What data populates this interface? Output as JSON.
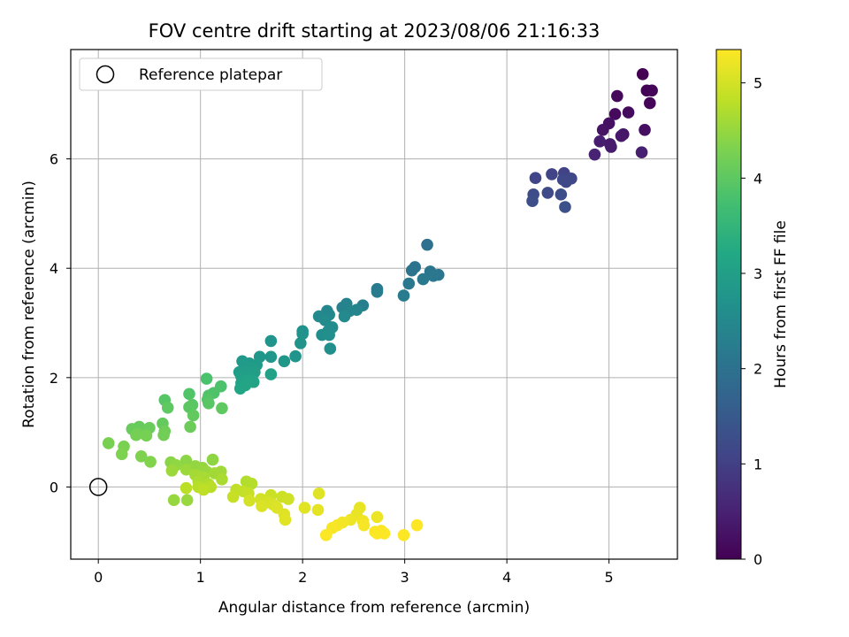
{
  "chart_data": {
    "type": "scatter",
    "title": "FOV centre drift starting at 2023/08/06 21:16:33",
    "xlabel": "Angular distance from reference (arcmin)",
    "ylabel": "Rotation from reference (arcmin)",
    "xlim": [
      -0.27,
      5.67
    ],
    "ylim": [
      -1.32,
      8.0
    ],
    "x_ticks": [
      0,
      1,
      2,
      3,
      4,
      5
    ],
    "y_ticks": [
      0,
      2,
      4,
      6
    ],
    "grid": true,
    "legend": {
      "placement": "upper-left",
      "entries": [
        "Reference platepar"
      ]
    },
    "reference_point": {
      "x": 0,
      "y": 0
    },
    "colorbar": {
      "label": "Hours from first FF file",
      "range": [
        0,
        5.35
      ],
      "ticks": [
        0,
        1,
        2,
        3,
        4,
        5
      ],
      "colormap": "viridis"
    },
    "points": [
      {
        "x": 5.33,
        "y": 7.55,
        "t": 0.0
      },
      {
        "x": 5.37,
        "y": 7.25,
        "t": 0.04
      },
      {
        "x": 5.42,
        "y": 7.25,
        "t": 0.06
      },
      {
        "x": 5.4,
        "y": 7.02,
        "t": 0.08
      },
      {
        "x": 5.08,
        "y": 7.15,
        "t": 0.1
      },
      {
        "x": 5.06,
        "y": 6.82,
        "t": 0.14
      },
      {
        "x": 5.19,
        "y": 6.85,
        "t": 0.17
      },
      {
        "x": 5.35,
        "y": 6.53,
        "t": 0.2
      },
      {
        "x": 5.0,
        "y": 6.65,
        "t": 0.24
      },
      {
        "x": 4.94,
        "y": 6.53,
        "t": 0.28
      },
      {
        "x": 5.14,
        "y": 6.45,
        "t": 0.31
      },
      {
        "x": 5.12,
        "y": 6.42,
        "t": 0.34
      },
      {
        "x": 5.01,
        "y": 6.27,
        "t": 0.38
      },
      {
        "x": 5.02,
        "y": 6.22,
        "t": 0.41
      },
      {
        "x": 4.91,
        "y": 6.32,
        "t": 0.44
      },
      {
        "x": 5.32,
        "y": 6.12,
        "t": 0.46
      },
      {
        "x": 4.86,
        "y": 6.08,
        "t": 0.5
      },
      {
        "x": 4.56,
        "y": 5.74,
        "t": 1.05
      },
      {
        "x": 4.44,
        "y": 5.72,
        "t": 1.08
      },
      {
        "x": 4.28,
        "y": 5.65,
        "t": 1.1
      },
      {
        "x": 4.63,
        "y": 5.64,
        "t": 1.12
      },
      {
        "x": 4.55,
        "y": 5.62,
        "t": 1.15
      },
      {
        "x": 4.58,
        "y": 5.58,
        "t": 1.17
      },
      {
        "x": 4.4,
        "y": 5.38,
        "t": 1.2
      },
      {
        "x": 4.26,
        "y": 5.35,
        "t": 1.22
      },
      {
        "x": 4.53,
        "y": 5.35,
        "t": 1.25
      },
      {
        "x": 4.25,
        "y": 5.23,
        "t": 1.27
      },
      {
        "x": 4.57,
        "y": 5.12,
        "t": 1.3
      },
      {
        "x": 3.22,
        "y": 4.43,
        "t": 2.0
      },
      {
        "x": 3.1,
        "y": 4.02,
        "t": 2.03
      },
      {
        "x": 3.07,
        "y": 3.96,
        "t": 2.05
      },
      {
        "x": 3.25,
        "y": 3.94,
        "t": 2.07
      },
      {
        "x": 3.33,
        "y": 3.88,
        "t": 2.09
      },
      {
        "x": 3.28,
        "y": 3.86,
        "t": 2.11
      },
      {
        "x": 3.18,
        "y": 3.8,
        "t": 2.13
      },
      {
        "x": 3.04,
        "y": 3.72,
        "t": 2.15
      },
      {
        "x": 2.73,
        "y": 3.62,
        "t": 2.18
      },
      {
        "x": 2.73,
        "y": 3.57,
        "t": 2.2
      },
      {
        "x": 2.99,
        "y": 3.5,
        "t": 2.22
      },
      {
        "x": 2.59,
        "y": 3.32,
        "t": 2.3
      },
      {
        "x": 2.43,
        "y": 3.35,
        "t": 2.35
      },
      {
        "x": 2.39,
        "y": 3.28,
        "t": 2.38
      },
      {
        "x": 2.53,
        "y": 3.24,
        "t": 2.4
      },
      {
        "x": 2.46,
        "y": 3.22,
        "t": 2.42
      },
      {
        "x": 2.24,
        "y": 3.22,
        "t": 2.45
      },
      {
        "x": 2.26,
        "y": 3.15,
        "t": 2.47
      },
      {
        "x": 2.16,
        "y": 3.12,
        "t": 2.5
      },
      {
        "x": 2.41,
        "y": 3.12,
        "t": 2.52
      },
      {
        "x": 2.22,
        "y": 3.05,
        "t": 2.55
      },
      {
        "x": 2.29,
        "y": 2.92,
        "t": 2.57
      },
      {
        "x": 2.25,
        "y": 2.85,
        "t": 2.6
      },
      {
        "x": 2.19,
        "y": 2.78,
        "t": 2.62
      },
      {
        "x": 2.26,
        "y": 2.78,
        "t": 2.64
      },
      {
        "x": 2.27,
        "y": 2.53,
        "t": 2.66
      },
      {
        "x": 2.0,
        "y": 2.85,
        "t": 2.68
      },
      {
        "x": 2.0,
        "y": 2.8,
        "t": 2.7
      },
      {
        "x": 1.98,
        "y": 2.63,
        "t": 2.72
      },
      {
        "x": 1.69,
        "y": 2.67,
        "t": 2.74
      },
      {
        "x": 1.93,
        "y": 2.39,
        "t": 2.76
      },
      {
        "x": 1.69,
        "y": 2.38,
        "t": 2.78
      },
      {
        "x": 1.58,
        "y": 2.38,
        "t": 2.8
      },
      {
        "x": 1.82,
        "y": 2.3,
        "t": 2.82
      },
      {
        "x": 1.41,
        "y": 2.3,
        "t": 2.84
      },
      {
        "x": 1.48,
        "y": 2.26,
        "t": 2.86
      },
      {
        "x": 1.43,
        "y": 2.25,
        "t": 2.88
      },
      {
        "x": 1.55,
        "y": 2.23,
        "t": 2.9
      },
      {
        "x": 1.5,
        "y": 2.18,
        "t": 2.92
      },
      {
        "x": 1.38,
        "y": 2.1,
        "t": 2.94
      },
      {
        "x": 1.45,
        "y": 2.12,
        "t": 2.96
      },
      {
        "x": 1.53,
        "y": 2.1,
        "t": 2.98
      },
      {
        "x": 1.47,
        "y": 2.05,
        "t": 3.0
      },
      {
        "x": 1.4,
        "y": 2.02,
        "t": 3.02
      },
      {
        "x": 1.69,
        "y": 2.06,
        "t": 3.04
      },
      {
        "x": 1.47,
        "y": 1.96,
        "t": 3.06
      },
      {
        "x": 1.4,
        "y": 1.9,
        "t": 3.08
      },
      {
        "x": 1.52,
        "y": 1.92,
        "t": 3.1
      },
      {
        "x": 1.44,
        "y": 1.86,
        "t": 3.12
      },
      {
        "x": 1.39,
        "y": 1.8,
        "t": 3.14
      },
      {
        "x": 1.06,
        "y": 1.98,
        "t": 3.8
      },
      {
        "x": 1.2,
        "y": 1.84,
        "t": 3.82
      },
      {
        "x": 1.13,
        "y": 1.72,
        "t": 3.84
      },
      {
        "x": 1.08,
        "y": 1.67,
        "t": 3.86
      },
      {
        "x": 0.89,
        "y": 1.7,
        "t": 3.88
      },
      {
        "x": 1.07,
        "y": 1.6,
        "t": 3.9
      },
      {
        "x": 0.65,
        "y": 1.59,
        "t": 3.92
      },
      {
        "x": 1.08,
        "y": 1.53,
        "t": 3.94
      },
      {
        "x": 0.92,
        "y": 1.5,
        "t": 3.96
      },
      {
        "x": 0.89,
        "y": 1.46,
        "t": 3.98
      },
      {
        "x": 0.68,
        "y": 1.45,
        "t": 4.0
      },
      {
        "x": 1.21,
        "y": 1.44,
        "t": 4.02
      },
      {
        "x": 0.93,
        "y": 1.31,
        "t": 4.04
      },
      {
        "x": 0.63,
        "y": 1.16,
        "t": 4.06
      },
      {
        "x": 0.4,
        "y": 1.1,
        "t": 4.08
      },
      {
        "x": 0.33,
        "y": 1.06,
        "t": 4.1
      },
      {
        "x": 0.5,
        "y": 1.08,
        "t": 4.12
      },
      {
        "x": 0.9,
        "y": 1.1,
        "t": 4.14
      },
      {
        "x": 0.65,
        "y": 1.02,
        "t": 4.16
      },
      {
        "x": 0.39,
        "y": 0.98,
        "t": 4.18
      },
      {
        "x": 0.64,
        "y": 0.95,
        "t": 4.2
      },
      {
        "x": 0.37,
        "y": 0.95,
        "t": 4.22
      },
      {
        "x": 0.47,
        "y": 0.94,
        "t": 4.24
      },
      {
        "x": 0.1,
        "y": 0.8,
        "t": 4.26
      },
      {
        "x": 0.25,
        "y": 0.74,
        "t": 4.28
      },
      {
        "x": 0.23,
        "y": 0.6,
        "t": 4.3
      },
      {
        "x": 0.42,
        "y": 0.56,
        "t": 4.32
      },
      {
        "x": 0.51,
        "y": 0.46,
        "t": 4.34
      },
      {
        "x": 0.71,
        "y": 0.45,
        "t": 4.4
      },
      {
        "x": 0.86,
        "y": 0.48,
        "t": 4.42
      },
      {
        "x": 1.12,
        "y": 0.5,
        "t": 4.44
      },
      {
        "x": 0.76,
        "y": 0.4,
        "t": 4.46
      },
      {
        "x": 0.95,
        "y": 0.38,
        "t": 4.48
      },
      {
        "x": 1.02,
        "y": 0.35,
        "t": 4.5
      },
      {
        "x": 1.06,
        "y": 0.28,
        "t": 4.52
      },
      {
        "x": 0.86,
        "y": 0.32,
        "t": 4.54
      },
      {
        "x": 0.72,
        "y": 0.3,
        "t": 4.56
      },
      {
        "x": 1.2,
        "y": 0.28,
        "t": 4.58
      },
      {
        "x": 1.14,
        "y": 0.25,
        "t": 4.6
      },
      {
        "x": 0.95,
        "y": 0.22,
        "t": 4.62
      },
      {
        "x": 1.03,
        "y": 0.18,
        "t": 4.64
      },
      {
        "x": 1.21,
        "y": 0.14,
        "t": 4.66
      },
      {
        "x": 0.98,
        "y": 0.1,
        "t": 4.68
      },
      {
        "x": 1.08,
        "y": 0.05,
        "t": 4.7
      },
      {
        "x": 1.45,
        "y": 0.1,
        "t": 4.72
      },
      {
        "x": 1.5,
        "y": 0.06,
        "t": 4.74
      },
      {
        "x": 0.98,
        "y": 0.0,
        "t": 4.76
      },
      {
        "x": 1.1,
        "y": 0.0,
        "t": 4.78
      },
      {
        "x": 0.86,
        "y": -0.02,
        "t": 4.8
      },
      {
        "x": 1.03,
        "y": -0.05,
        "t": 4.82
      },
      {
        "x": 1.35,
        "y": -0.05,
        "t": 4.84
      },
      {
        "x": 1.42,
        "y": -0.08,
        "t": 4.86
      },
      {
        "x": 1.47,
        "y": -0.12,
        "t": 4.88
      },
      {
        "x": 1.32,
        "y": -0.18,
        "t": 4.9
      },
      {
        "x": 1.69,
        "y": -0.15,
        "t": 4.92
      },
      {
        "x": 1.8,
        "y": -0.18,
        "t": 4.94
      },
      {
        "x": 1.86,
        "y": -0.22,
        "t": 4.96
      },
      {
        "x": 1.59,
        "y": -0.22,
        "t": 4.98
      },
      {
        "x": 1.48,
        "y": -0.25,
        "t": 5.0
      },
      {
        "x": 0.74,
        "y": -0.24,
        "t": 4.5
      },
      {
        "x": 0.87,
        "y": -0.24,
        "t": 4.52
      },
      {
        "x": 1.66,
        "y": -0.28,
        "t": 5.02
      },
      {
        "x": 1.71,
        "y": -0.32,
        "t": 5.04
      },
      {
        "x": 1.6,
        "y": -0.35,
        "t": 5.06
      },
      {
        "x": 1.75,
        "y": -0.38,
        "t": 5.08
      },
      {
        "x": 1.82,
        "y": -0.5,
        "t": 5.1
      },
      {
        "x": 1.83,
        "y": -0.6,
        "t": 5.12
      },
      {
        "x": 2.16,
        "y": -0.12,
        "t": 5.1
      },
      {
        "x": 2.02,
        "y": -0.38,
        "t": 5.12
      },
      {
        "x": 2.15,
        "y": -0.42,
        "t": 5.14
      },
      {
        "x": 2.56,
        "y": -0.38,
        "t": 5.16
      },
      {
        "x": 2.53,
        "y": -0.5,
        "t": 5.18
      },
      {
        "x": 2.73,
        "y": -0.55,
        "t": 5.2
      },
      {
        "x": 2.47,
        "y": -0.6,
        "t": 5.22
      },
      {
        "x": 2.59,
        "y": -0.62,
        "t": 5.24
      },
      {
        "x": 2.39,
        "y": -0.65,
        "t": 5.26
      },
      {
        "x": 2.34,
        "y": -0.7,
        "t": 5.28
      },
      {
        "x": 2.6,
        "y": -0.7,
        "t": 5.3
      },
      {
        "x": 2.29,
        "y": -0.75,
        "t": 5.3
      },
      {
        "x": 2.77,
        "y": -0.8,
        "t": 5.32
      },
      {
        "x": 2.71,
        "y": -0.82,
        "t": 5.32
      },
      {
        "x": 2.8,
        "y": -0.85,
        "t": 5.33
      },
      {
        "x": 2.23,
        "y": -0.88,
        "t": 5.33
      },
      {
        "x": 2.99,
        "y": -0.88,
        "t": 5.34
      },
      {
        "x": 3.12,
        "y": -0.7,
        "t": 5.35
      },
      {
        "x": 2.73,
        "y": -0.85,
        "t": 5.34
      }
    ]
  }
}
